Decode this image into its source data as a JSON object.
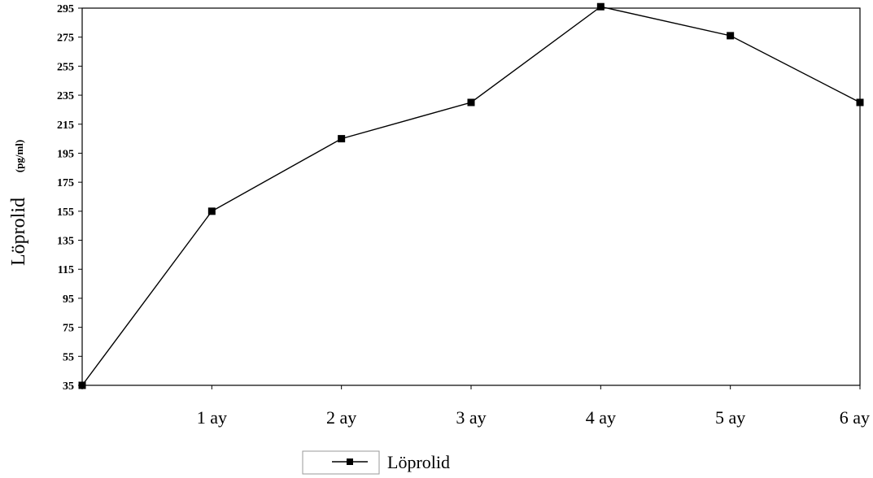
{
  "chart_data": {
    "type": "line",
    "categories": [
      "",
      "1 ay",
      "2 ay",
      "3 ay",
      "4 ay",
      "5 ay",
      "6 ay"
    ],
    "series": [
      {
        "name": "Löprolid",
        "values": [
          35,
          155,
          205,
          230,
          296,
          276,
          230
        ]
      }
    ],
    "ylabel": "Löprolid",
    "ylabel_unit": "(pg/ml)",
    "xlabel": "",
    "ylim": [
      35,
      295
    ],
    "yticks": [
      35,
      55,
      75,
      95,
      115,
      135,
      155,
      175,
      195,
      215,
      235,
      255,
      275,
      295
    ],
    "grid": false,
    "legend_position": "bottom-center",
    "line_color": "#000000",
    "marker": "square"
  }
}
